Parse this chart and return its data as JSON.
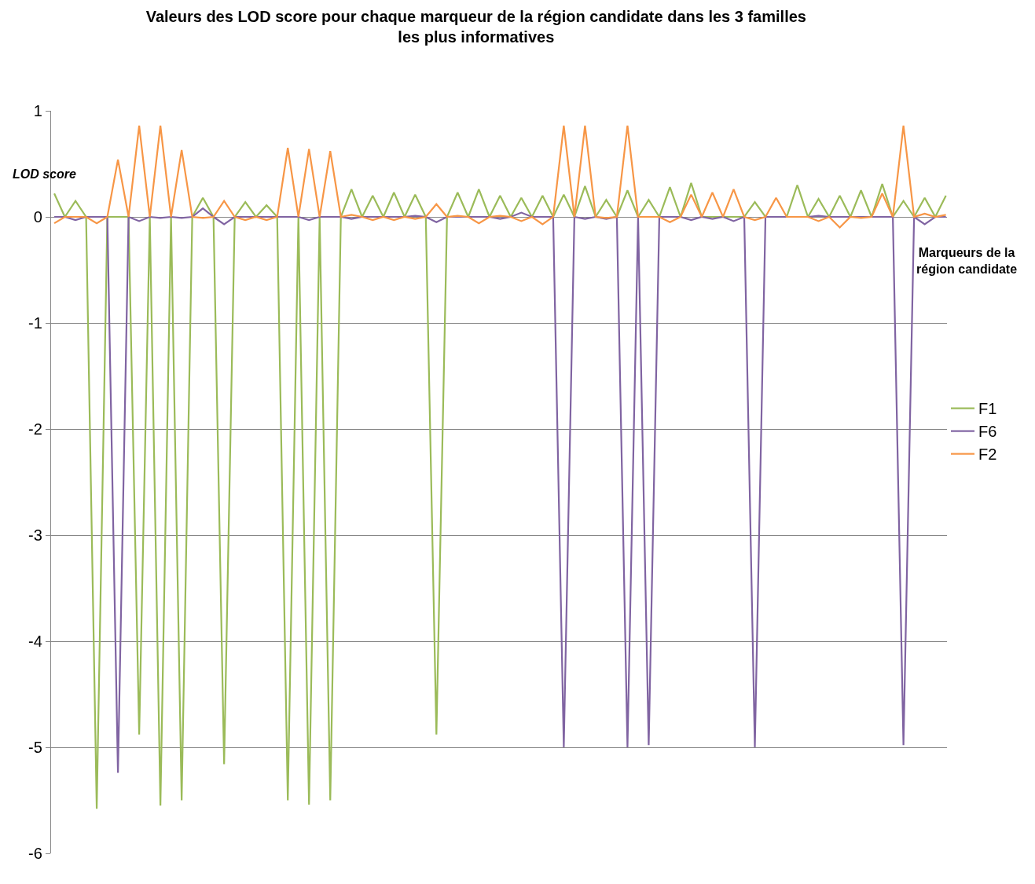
{
  "chart_data": {
    "type": "line",
    "title": "Valeurs des LOD score pour chaque marqueur de la région candidate dans les 3 familles les plus informatives",
    "xlabel": "Marqueurs de la région candidate",
    "ylabel": "LOD score",
    "categories": [
      null,
      null,
      null,
      null,
      null,
      null,
      null,
      null,
      null,
      null,
      null,
      null,
      null,
      null,
      null,
      null,
      null,
      null,
      null,
      null,
      null,
      null,
      null,
      null,
      null,
      null,
      null,
      null,
      null,
      null,
      null,
      null,
      null,
      null,
      null,
      null,
      null,
      null,
      null,
      null,
      null,
      null,
      null,
      null,
      null,
      null,
      null,
      null,
      null,
      null,
      null,
      null,
      null,
      null,
      null,
      null,
      null,
      null,
      null,
      null,
      null,
      null,
      null,
      null,
      null,
      null,
      null,
      null,
      null,
      null,
      null,
      null,
      null,
      null,
      null,
      null,
      null,
      null,
      null,
      null,
      null,
      null,
      null,
      null,
      null
    ],
    "series": [
      {
        "name": "F1",
        "color": "#9bbb59",
        "values": [
          0.22,
          0,
          0.15,
          0,
          -5.58,
          0,
          0,
          0,
          -4.88,
          0,
          -5.55,
          0,
          -5.5,
          0,
          0.18,
          0,
          -5.16,
          0,
          0.14,
          0,
          0.11,
          0,
          -5.5,
          0,
          -5.54,
          0,
          -5.5,
          0,
          0.26,
          0,
          0.2,
          0,
          0.23,
          0,
          0.21,
          0,
          -4.88,
          0,
          0.23,
          0,
          0.26,
          0,
          0.2,
          0,
          0.18,
          0,
          0.2,
          0,
          0.21,
          0,
          0.29,
          0,
          0.16,
          0,
          0.25,
          0,
          0.16,
          0,
          0.28,
          0,
          0.32,
          0,
          0,
          0,
          0,
          0,
          0.14,
          0,
          0,
          0,
          0.3,
          0,
          0.17,
          0,
          0.2,
          0,
          0.25,
          0,
          0.31,
          0,
          0.15,
          0,
          0.18,
          0,
          0.2
        ]
      },
      {
        "name": "F6",
        "color": "#8064a2",
        "values": [
          0,
          0,
          -0.03,
          0,
          0,
          0,
          -5.24,
          0,
          -0.04,
          0,
          -0.01,
          0,
          -0.01,
          0,
          0.08,
          0,
          -0.07,
          0,
          0,
          0,
          0,
          0,
          0,
          0,
          -0.03,
          0,
          0,
          0,
          -0.02,
          0,
          0,
          0,
          0,
          0,
          0.01,
          0,
          -0.05,
          0,
          0,
          0,
          0,
          0,
          -0.02,
          0,
          0.04,
          0,
          0,
          0,
          -5.0,
          0,
          -0.02,
          0,
          -0.02,
          0,
          -5.0,
          0,
          -4.98,
          0,
          0,
          0,
          -0.03,
          0,
          -0.02,
          0,
          -0.04,
          0,
          -5.0,
          0,
          0,
          0,
          0,
          0,
          0.01,
          0,
          0,
          0,
          0,
          0,
          0,
          0,
          -4.98,
          0,
          -0.07,
          0,
          0
        ]
      },
      {
        "name": "F2",
        "color": "#f79646",
        "values": [
          -0.06,
          0,
          0,
          0,
          -0.06,
          0,
          0.54,
          0,
          0.86,
          0,
          0.86,
          0,
          0.63,
          0,
          -0.01,
          0,
          0.15,
          0,
          -0.03,
          0,
          -0.03,
          0,
          0.65,
          0,
          0.64,
          0,
          0.62,
          0,
          0.02,
          0,
          -0.03,
          0,
          -0.03,
          0,
          -0.02,
          0,
          0.12,
          0,
          0.01,
          0,
          -0.06,
          0,
          0.01,
          0,
          -0.04,
          0,
          -0.07,
          0,
          0.86,
          0,
          0.86,
          0,
          -0.01,
          0,
          0.86,
          0,
          0,
          0,
          -0.05,
          0,
          0.21,
          0,
          0.23,
          0,
          0.26,
          0,
          -0.03,
          0,
          0.18,
          0,
          0,
          0,
          -0.04,
          0,
          -0.1,
          0,
          -0.01,
          0,
          0.22,
          0,
          0.86,
          0,
          0.03,
          0,
          0.02
        ]
      }
    ],
    "ylim": [
      -6,
      1
    ],
    "yticks": [
      -6,
      -5,
      -4,
      -3,
      -2,
      -1,
      0,
      1
    ],
    "grid": "y",
    "legend": "right",
    "marker": "none",
    "line_style": "solid"
  }
}
